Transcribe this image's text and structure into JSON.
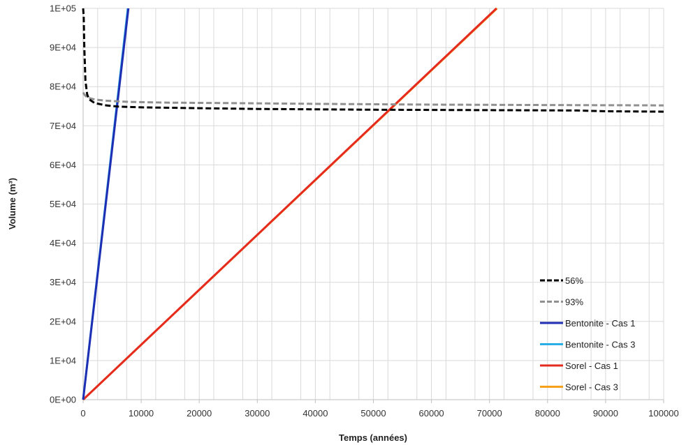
{
  "chart_data": {
    "type": "line",
    "title": "",
    "xlabel": "Temps (années)",
    "ylabel": "Volume",
    "ylabel_unit": "m³",
    "xlim": [
      0,
      100000
    ],
    "ylim": [
      0,
      100000
    ],
    "x_ticks": [
      "0",
      "10000",
      "20000",
      "30000",
      "40000",
      "50000",
      "60000",
      "70000",
      "80000",
      "90000",
      "100000"
    ],
    "y_ticks": [
      "0E+00",
      "1E+04",
      "2E+04",
      "3E+04",
      "4E+04",
      "5E+04",
      "6E+04",
      "7E+04",
      "8E+04",
      "9E+04",
      "1E+05"
    ],
    "grid": true,
    "legend_position": "bottom-right",
    "series": [
      {
        "name": "56%",
        "color": "#000000",
        "dash": "dashed",
        "x": [
          0,
          100,
          200,
          400,
          700,
          1000,
          2000,
          4000,
          6000,
          10000,
          20000,
          30000,
          50000,
          70000,
          85000,
          90000,
          100000
        ],
        "y": [
          100000,
          98000,
          90000,
          81500,
          78000,
          76800,
          75800,
          75200,
          74900,
          74700,
          74500,
          74300,
          74100,
          74000,
          73900,
          73700,
          73600
        ]
      },
      {
        "name": "93%",
        "color": "#909090",
        "dash": "dashed",
        "x": [
          0,
          200,
          500,
          1000,
          2000,
          4000,
          8000,
          15000,
          25000,
          40000,
          60000,
          80000,
          100000
        ],
        "y": [
          78500,
          78000,
          77500,
          77100,
          76700,
          76400,
          76100,
          75900,
          75800,
          75600,
          75400,
          75300,
          75200
        ]
      },
      {
        "name": "Bentonite - Cas 1",
        "color": "#1f2fb4",
        "dash": "solid",
        "x": [
          0,
          7800
        ],
        "y": [
          0,
          100000
        ]
      },
      {
        "name": "Bentonite - Cas 3",
        "color": "#2aaee6",
        "dash": "solid",
        "x": [
          0,
          7700
        ],
        "y": [
          0,
          100000
        ]
      },
      {
        "name": "Sorel - Cas 1",
        "color": "#e52b20",
        "dash": "solid",
        "x": [
          0,
          71200
        ],
        "y": [
          0,
          100000
        ]
      },
      {
        "name": "Sorel - Cas 3",
        "color": "#f5a21a",
        "dash": "solid",
        "x": [
          0,
          71300
        ],
        "y": [
          0,
          100000
        ]
      }
    ]
  }
}
